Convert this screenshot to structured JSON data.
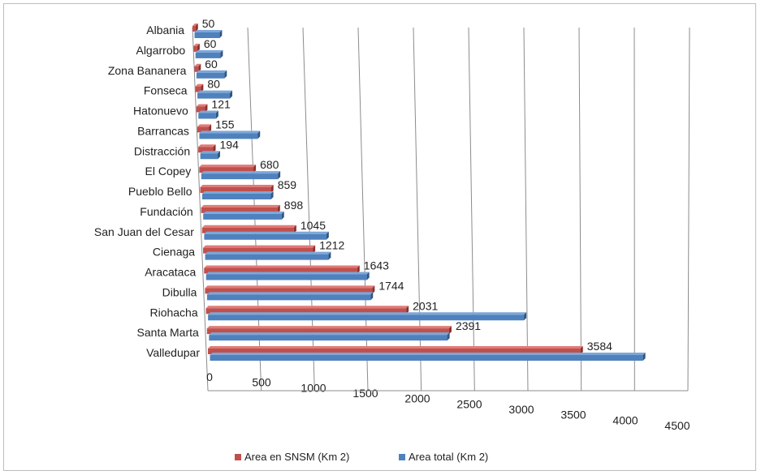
{
  "chart_data": {
    "type": "bar",
    "orientation": "horizontal",
    "perspective": "3d",
    "categories": [
      "Albania",
      "Algarrobo",
      "Zona Bananera",
      "Fonseca",
      "Hatonuevo",
      "Barrancas",
      "Distracción",
      "El Copey",
      "Pueblo Bello",
      "Fundación",
      "San Juan del Cesar",
      "Cienaga",
      "Aracataca",
      "Dibulla",
      "Riohacha",
      "Santa Marta",
      "Valledupar"
    ],
    "series": [
      {
        "name": "Area en SNSM (Km 2)",
        "color": "#c0504d",
        "values": [
          50,
          60,
          60,
          80,
          121,
          155,
          194,
          680,
          859,
          898,
          1045,
          1212,
          1643,
          1744,
          2031,
          2391,
          3584
        ]
      },
      {
        "name": "Area total (Km 2)",
        "color": "#4f81bd",
        "values": [
          420,
          400,
          430,
          480,
          250,
          800,
          230,
          980,
          850,
          940,
          1420,
          1390,
          1760,
          1740,
          3270,
          2400,
          4250
        ]
      }
    ],
    "data_labels": [
      "50",
      "60",
      "60",
      "80",
      "121",
      "155",
      "194",
      "680",
      "859",
      "898",
      "1045",
      "1212",
      "1643",
      "1744",
      "2031",
      "2391",
      "3584"
    ],
    "xticks": [
      "0",
      "500",
      "1000",
      "1500",
      "2000",
      "2500",
      "3000",
      "3500",
      "4000",
      "4500"
    ],
    "xlim": [
      0,
      4500
    ],
    "grid": true,
    "legend": "bottom"
  }
}
